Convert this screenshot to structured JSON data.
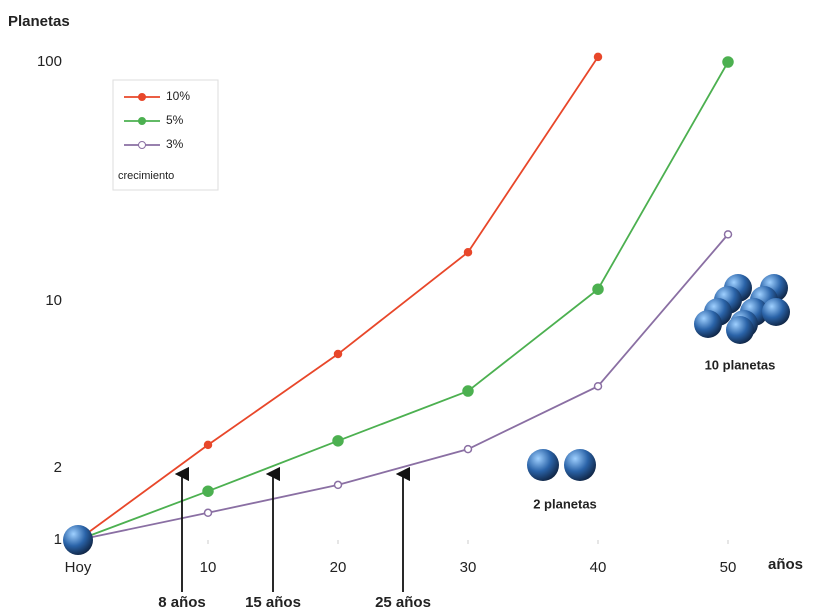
{
  "chart_data": {
    "type": "line",
    "y_label": "Planetas",
    "x_label": "años",
    "x": [
      0,
      10,
      20,
      30,
      40,
      50
    ],
    "series": [
      {
        "name": "10%",
        "color": "#e8472a",
        "values": [
          1,
          2.5,
          6,
          16,
          105,
          null
        ]
      },
      {
        "name": "5%",
        "color": "#4cb050",
        "values": [
          1,
          1.6,
          2.6,
          4.2,
          11.2,
          100
        ]
      },
      {
        "name": "3%",
        "color": "#8a6fa3",
        "values": [
          1,
          1.3,
          1.7,
          2.4,
          4.4,
          19
        ]
      }
    ],
    "legend_title": "crecimiento",
    "xlim": [
      0,
      50
    ],
    "xticks": [
      {
        "value": 0,
        "label": "Hoy"
      },
      10,
      20,
      30,
      40,
      50
    ],
    "ylim": [
      1,
      100
    ],
    "yscale": "log",
    "yticks": [
      1,
      2,
      10,
      100
    ],
    "annotations": [
      {
        "x": 8,
        "text": "8 años"
      },
      {
        "x": 15,
        "text": "15 años"
      },
      {
        "x": 25,
        "text": "25 años"
      }
    ],
    "icon_labels": [
      "2 planetas",
      "10 planetas"
    ]
  }
}
